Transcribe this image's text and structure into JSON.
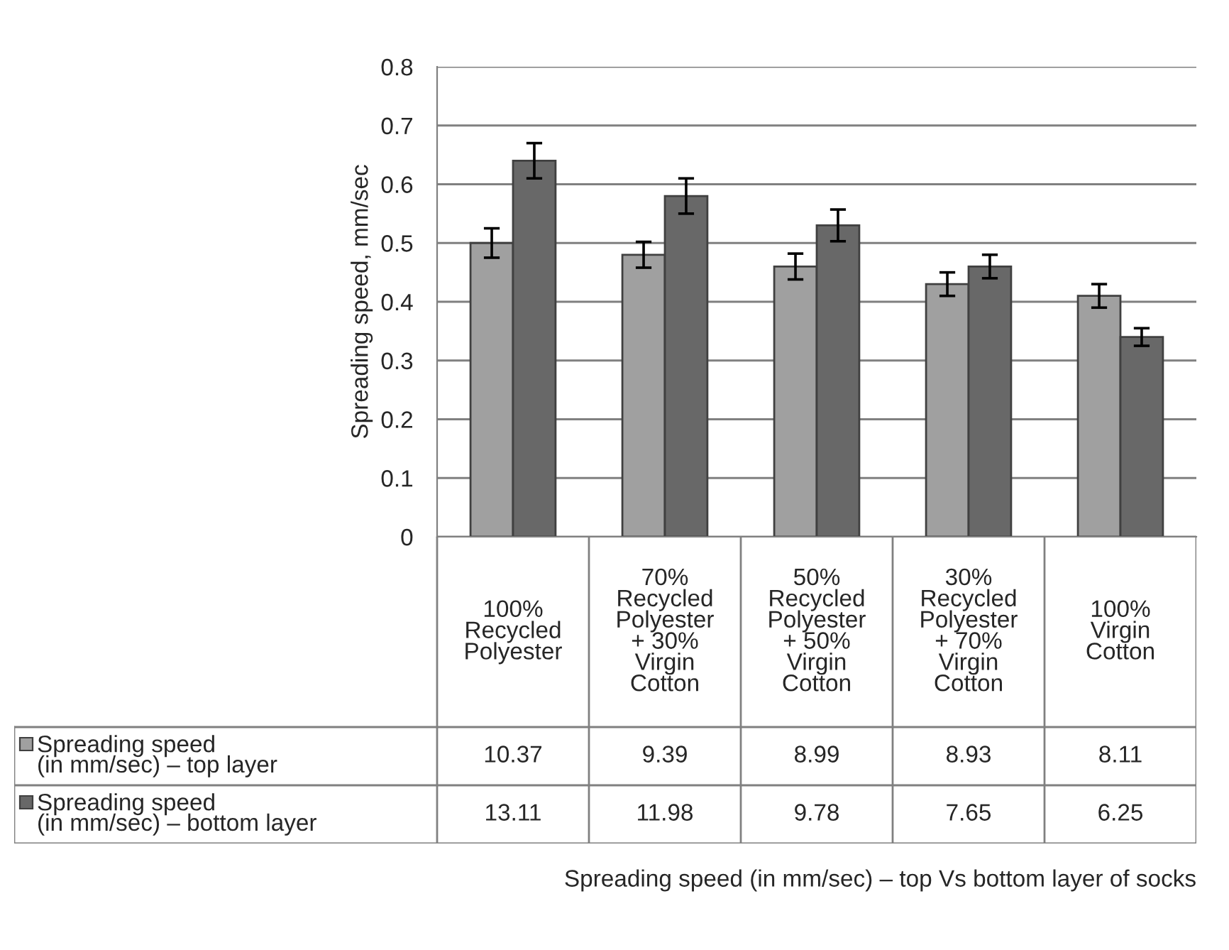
{
  "chart_data": {
    "type": "bar",
    "categories": [
      "100%\nRecycled\nPolyester",
      "70%\nRecycled\nPolyester\n+ 30%\nVirgin\nCotton",
      "50%\nRecycled\nPolyester\n+ 50%\nVirgin\nCotton",
      "30%\nRecycled\nPolyester\n+ 70%\nVirgin\nCotton",
      "100%\nVirgin\nCotton"
    ],
    "series": [
      {
        "name": "Spreading speed\n(in mm/sec) – top layer",
        "color": "#a0a0a0",
        "values": [
          0.5,
          0.48,
          0.46,
          0.43,
          0.41
        ],
        "errors": [
          0.025,
          0.022,
          0.022,
          0.02,
          0.02
        ]
      },
      {
        "name": "Spreading speed\n(in mm/sec) – bottom layer",
        "color": "#686868",
        "values": [
          0.64,
          0.58,
          0.53,
          0.46,
          0.34
        ],
        "errors": [
          0.03,
          0.03,
          0.027,
          0.02,
          0.015
        ]
      }
    ],
    "ylabel": "Spreading speed, mm/sec",
    "ylim": [
      0,
      0.8
    ],
    "yticks": [
      {
        "value": 0,
        "label": "0"
      },
      0.1,
      0.2,
      0.3,
      0.4,
      0.5,
      0.6,
      0.7,
      0.8
    ],
    "grid": "y",
    "legend": "bottom",
    "annotations": [
      "10.37",
      "9.39",
      "8.99",
      "8.93",
      "8.11",
      "13.11",
      "11.98",
      "9.78",
      "7.65",
      "6.25",
      "Spreading speed (in mm/sec) – top Vs bottom layer of socks"
    ]
  }
}
